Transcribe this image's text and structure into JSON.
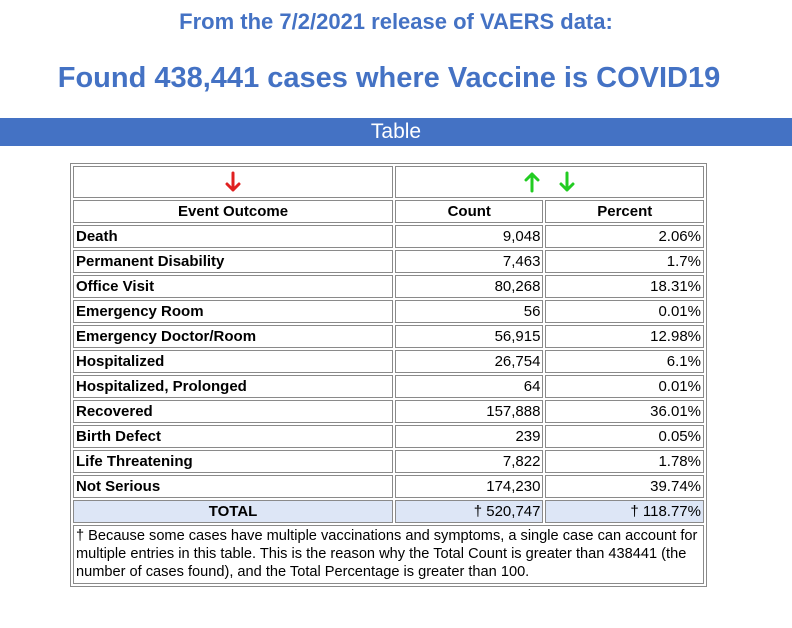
{
  "header": {
    "release_line": "From the 7/2/2021 release of VAERS data:",
    "found_line": "Found 438,441 cases where Vaccine is COVID19"
  },
  "section_bar": {
    "title": "Table"
  },
  "colors": {
    "accent_blue": "#4472c4",
    "arrow_red": "#e02020",
    "arrow_green": "#22cc22",
    "total_row_bg": "#dde6f6"
  },
  "table": {
    "sort_icons": {
      "outcome_column": [
        "arrow-down-red-icon"
      ],
      "count_column": [
        "arrow-up-green-icon",
        "arrow-down-green-icon"
      ]
    },
    "headers": {
      "outcome": "Event Outcome",
      "count": "Count",
      "percent": "Percent"
    },
    "rows": [
      {
        "outcome": "Death",
        "count": "9,048",
        "percent": "2.06%"
      },
      {
        "outcome": "Permanent Disability",
        "count": "7,463",
        "percent": "1.7%"
      },
      {
        "outcome": "Office Visit",
        "count": "80,268",
        "percent": "18.31%"
      },
      {
        "outcome": "Emergency Room",
        "count": "56",
        "percent": "0.01%"
      },
      {
        "outcome": "Emergency Doctor/Room",
        "count": "56,915",
        "percent": "12.98%"
      },
      {
        "outcome": "Hospitalized",
        "count": "26,754",
        "percent": "6.1%"
      },
      {
        "outcome": "Hospitalized, Prolonged",
        "count": "64",
        "percent": "0.01%"
      },
      {
        "outcome": "Recovered",
        "count": "157,888",
        "percent": "36.01%"
      },
      {
        "outcome": "Birth Defect",
        "count": "239",
        "percent": "0.05%"
      },
      {
        "outcome": "Life Threatening",
        "count": "7,822",
        "percent": "1.78%"
      },
      {
        "outcome": "Not Serious",
        "count": "174,230",
        "percent": "39.74%"
      }
    ],
    "total": {
      "label": "TOTAL",
      "count": "† 520,747",
      "percent": "† 118.77%"
    },
    "footnote": "† Because some cases have multiple vaccinations and symptoms, a single case can account for multiple entries in this table. This is the reason why the Total Count is greater than 438441 (the number of cases found), and the Total Percentage is greater than 100."
  }
}
